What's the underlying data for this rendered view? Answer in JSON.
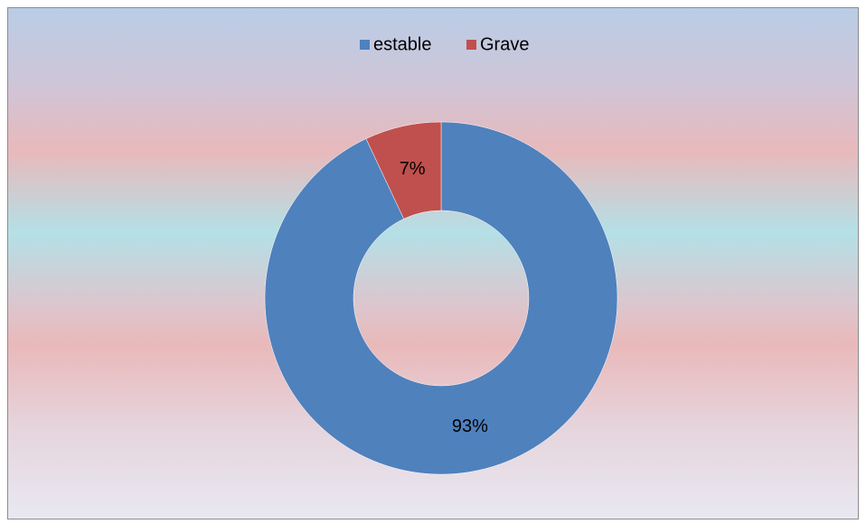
{
  "chart_data": {
    "type": "donut",
    "categories": [
      "estable",
      "Grave"
    ],
    "values": [
      93,
      7
    ],
    "value_labels": [
      "93%",
      "7%"
    ],
    "colors": [
      "#4f81bd",
      "#c0504d"
    ],
    "legend": "top"
  }
}
